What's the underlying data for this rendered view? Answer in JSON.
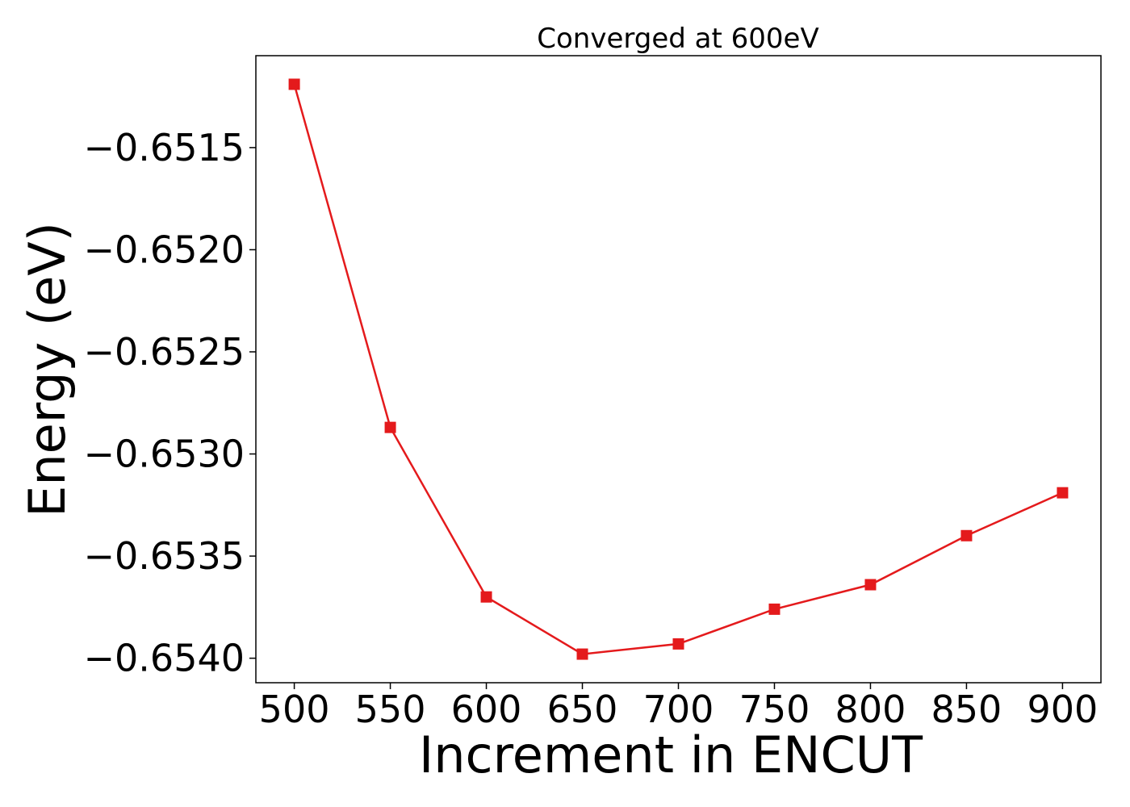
{
  "chart_data": {
    "type": "line",
    "title": "Converged at 600eV",
    "xlabel": "Increment in ENCUT",
    "ylabel": "Energy (eV)",
    "x": [
      500,
      550,
      600,
      650,
      700,
      750,
      800,
      850,
      900
    ],
    "series": [
      {
        "values": [
          -0.65119,
          -0.65287,
          -0.6537,
          -0.65398,
          -0.65393,
          -0.65376,
          -0.65364,
          -0.6534,
          -0.65319
        ],
        "color": "#e41a1c",
        "marker": "square"
      }
    ],
    "xlim": [
      480,
      920
    ],
    "ylim": [
      -0.65412,
      -0.65105
    ],
    "xticks": [
      500,
      550,
      600,
      650,
      700,
      750,
      800,
      850,
      900
    ],
    "xtick_labels": [
      "500",
      "550",
      "600",
      "650",
      "700",
      "750",
      "800",
      "850",
      "900"
    ],
    "yticks": [
      -0.6515,
      -0.652,
      -0.6525,
      -0.653,
      -0.6535,
      -0.654
    ],
    "ytick_labels": [
      "−0.6515",
      "−0.6520",
      "−0.6525",
      "−0.6530",
      "−0.6535",
      "−0.6540"
    ],
    "grid": false,
    "legend": "none"
  }
}
